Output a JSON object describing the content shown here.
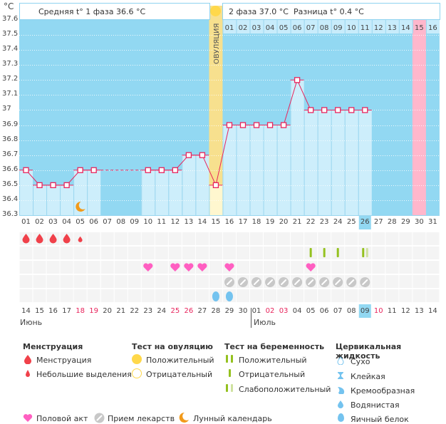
{
  "header": {
    "unit": "°C",
    "phase1_text": "Средняя t° 1 фаза 36.6 °C",
    "phase2_text": "2 фаза 37.0 °C",
    "diff_text": "Разница t° 0.4 °C",
    "ovulation_label": "ОВУЛЯЦИЯ",
    "ovulation_test_icon": "sun-positive-ovulation-test"
  },
  "chart_data": {
    "type": "line",
    "title": "",
    "ylabel": "°C",
    "ylim": [
      36.3,
      37.6
    ],
    "y_ticks": [
      "37.6",
      "37.5",
      "37.4",
      "37.3",
      "37.2",
      "37.1",
      "37",
      "36.9",
      "36.8",
      "36.7",
      "36.6",
      "36.5",
      "36.4",
      "36.3"
    ],
    "cycle_days": [
      "01",
      "02",
      "03",
      "04",
      "05",
      "06",
      "07",
      "08",
      "09",
      "10",
      "11",
      "12",
      "13",
      "14",
      "15",
      "16",
      "17",
      "18",
      "19",
      "20",
      "21",
      "22",
      "23",
      "24",
      "25",
      "26",
      "27",
      "28",
      "29",
      "30",
      "31"
    ],
    "phase2_day_numbers": [
      "01",
      "02",
      "03",
      "04",
      "05",
      "06",
      "07",
      "08",
      "09",
      "10",
      "11",
      "12",
      "13",
      "14",
      "15",
      "16"
    ],
    "today_cycle_day": "26",
    "ovulation_day": 15,
    "expected_period_day": 30,
    "temperatures": [
      36.6,
      36.5,
      36.5,
      36.5,
      36.6,
      36.6,
      null,
      null,
      null,
      36.6,
      36.6,
      36.6,
      36.7,
      36.7,
      36.5,
      36.9,
      36.9,
      36.9,
      36.9,
      36.9,
      37.2,
      37.0,
      37.0,
      37.0,
      37.0,
      37.0,
      null,
      null,
      null,
      null,
      null
    ],
    "interpolated_gap": [
      7,
      8,
      9
    ],
    "coverline_phase1": 36.6,
    "coverline_phase2": 36.9,
    "series_color": "#e8245c",
    "grid": true
  },
  "calendar": {
    "dates": [
      "14",
      "15",
      "16",
      "17",
      "18",
      "19",
      "20",
      "21",
      "22",
      "23",
      "24",
      "25",
      "26",
      "27",
      "28",
      "29",
      "30",
      "01",
      "02",
      "03",
      "04",
      "05",
      "06",
      "07",
      "08",
      "09",
      "10",
      "11",
      "12",
      "13",
      "14"
    ],
    "weekend_red": [
      4,
      5,
      11,
      12,
      18,
      19,
      26
    ],
    "today_index": 25,
    "month1": "Июнь",
    "month2": "Июль",
    "month2_start_index": 17
  },
  "symbols": {
    "menstruation": {
      "heavy": [
        1,
        2,
        3,
        4
      ],
      "light": [
        5
      ]
    },
    "pregnancy_test": {
      "negative": [
        22,
        23,
        24
      ],
      "weak_positive": [
        26
      ]
    },
    "intercourse": [
      10,
      12,
      13,
      14,
      16,
      22
    ],
    "medication": [
      16,
      17,
      18,
      19,
      20,
      21,
      22,
      23,
      24,
      25,
      26
    ],
    "cervical_fluid_egg_white": [
      15,
      16
    ],
    "lunar": [
      5
    ]
  },
  "legend": {
    "menstruation": {
      "title": "Менструация",
      "items": [
        "Менструация",
        "Небольшие выделения"
      ]
    },
    "ovulation_test": {
      "title": "Тест на овуляцию",
      "items": [
        "Положительный",
        "Отрицательный"
      ]
    },
    "pregnancy_test": {
      "title": "Тест на беременность",
      "items": [
        "Положительный",
        "Отрицательный",
        "Слабоположительный"
      ]
    },
    "cervical_fluid": {
      "title": "Цервикальная жидкость",
      "items": [
        "Сухо",
        "Клейкая",
        "Кремообразная",
        "Водянистая",
        "Яичный белок"
      ]
    },
    "other": [
      "Половой акт",
      "Прием лекарств",
      "Лунный календарь"
    ]
  },
  "colors": {
    "sky": "#92d8f2",
    "bar": "#cdeefb",
    "ovulation": "#f7e08e",
    "period": "#ffb7cc",
    "line": "#e8245c",
    "blood": "#f0414a",
    "heart": "#ff5fc1",
    "pill": "#c8c8c8",
    "preg": "#94c11f",
    "preg_weak": "#cfe2a0",
    "fluid": "#74c3ef",
    "moon": "#f29a1a",
    "sun": "#ffd84a"
  }
}
